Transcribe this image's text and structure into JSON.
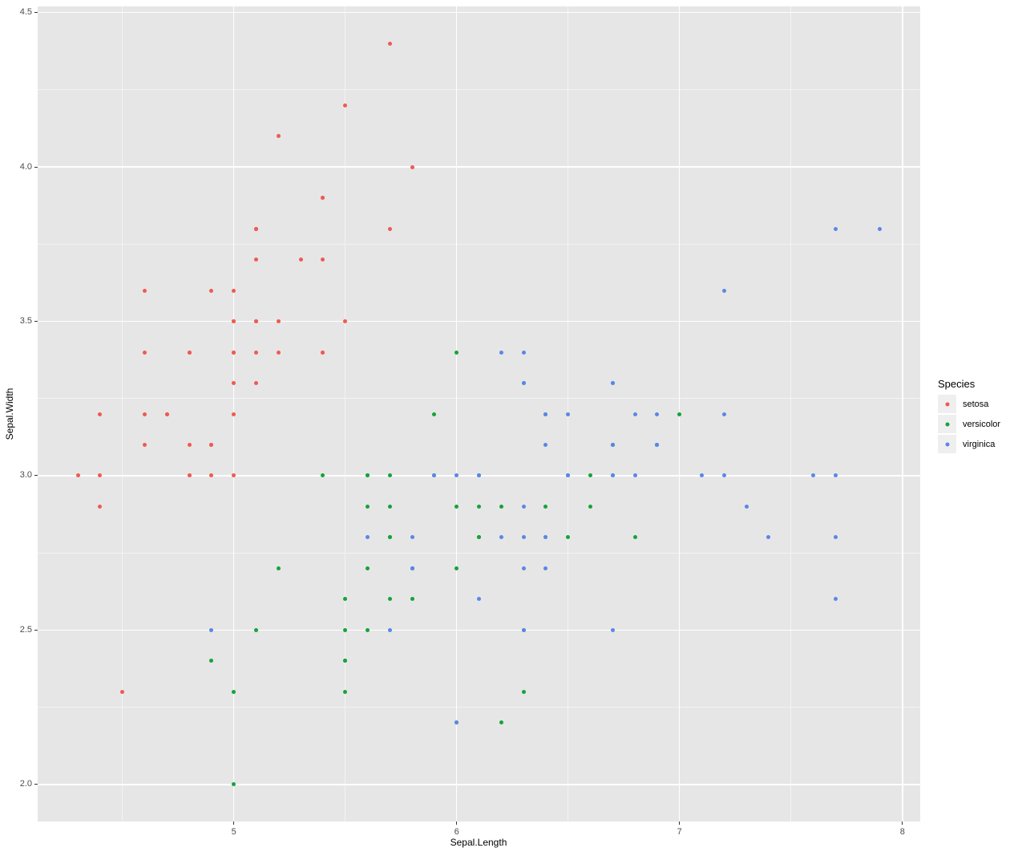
{
  "chart_data": {
    "type": "scatter",
    "title": "",
    "xlabel": "Sepal.Length",
    "ylabel": "Sepal.Width",
    "xlim": [
      4.12,
      8.08
    ],
    "ylim": [
      1.88,
      4.52
    ],
    "x_ticks": [
      5,
      6,
      7,
      8
    ],
    "x_tick_labels": [
      "5",
      "6",
      "7",
      "8"
    ],
    "y_ticks": [
      2.0,
      2.5,
      3.0,
      3.5,
      4.0,
      4.5
    ],
    "y_tick_labels": [
      "2.0",
      "2.5",
      "3.0",
      "3.5",
      "4.0",
      "4.5"
    ],
    "x_minor_ticks": [
      4.5,
      5.5,
      6.5,
      7.5
    ],
    "y_minor_ticks": [
      2.25,
      2.75,
      3.25,
      3.75,
      4.25
    ],
    "grid": true,
    "legend_position": "right",
    "legend_title": "Species",
    "series": [
      {
        "name": "setosa",
        "color": "#EE5A52",
        "points": [
          [
            5.1,
            3.5
          ],
          [
            4.9,
            3.0
          ],
          [
            4.7,
            3.2
          ],
          [
            4.6,
            3.1
          ],
          [
            5.0,
            3.6
          ],
          [
            5.4,
            3.9
          ],
          [
            4.6,
            3.4
          ],
          [
            5.0,
            3.4
          ],
          [
            4.4,
            2.9
          ],
          [
            4.9,
            3.1
          ],
          [
            5.4,
            3.7
          ],
          [
            4.8,
            3.4
          ],
          [
            4.8,
            3.0
          ],
          [
            4.3,
            3.0
          ],
          [
            5.8,
            4.0
          ],
          [
            5.7,
            4.4
          ],
          [
            5.4,
            3.9
          ],
          [
            5.1,
            3.5
          ],
          [
            5.7,
            3.8
          ],
          [
            5.1,
            3.8
          ],
          [
            5.4,
            3.4
          ],
          [
            5.1,
            3.7
          ],
          [
            4.6,
            3.6
          ],
          [
            5.1,
            3.3
          ],
          [
            4.8,
            3.4
          ],
          [
            5.0,
            3.0
          ],
          [
            5.0,
            3.4
          ],
          [
            5.2,
            3.5
          ],
          [
            5.2,
            3.4
          ],
          [
            4.7,
            3.2
          ],
          [
            4.8,
            3.1
          ],
          [
            5.4,
            3.4
          ],
          [
            5.2,
            4.1
          ],
          [
            5.5,
            4.2
          ],
          [
            4.9,
            3.1
          ],
          [
            5.0,
            3.2
          ],
          [
            5.5,
            3.5
          ],
          [
            4.9,
            3.6
          ],
          [
            4.4,
            3.0
          ],
          [
            5.1,
            3.4
          ],
          [
            5.0,
            3.5
          ],
          [
            4.5,
            2.3
          ],
          [
            4.4,
            3.2
          ],
          [
            5.0,
            3.5
          ],
          [
            5.1,
            3.8
          ],
          [
            4.8,
            3.0
          ],
          [
            5.1,
            3.8
          ],
          [
            4.6,
            3.2
          ],
          [
            5.3,
            3.7
          ],
          [
            5.0,
            3.3
          ]
        ]
      },
      {
        "name": "versicolor",
        "color": "#14A33B",
        "points": [
          [
            7.0,
            3.2
          ],
          [
            6.4,
            3.2
          ],
          [
            6.9,
            3.1
          ],
          [
            5.5,
            2.3
          ],
          [
            6.5,
            2.8
          ],
          [
            5.7,
            2.8
          ],
          [
            6.3,
            3.3
          ],
          [
            4.9,
            2.4
          ],
          [
            6.6,
            2.9
          ],
          [
            5.2,
            2.7
          ],
          [
            5.0,
            2.0
          ],
          [
            5.9,
            3.0
          ],
          [
            6.0,
            2.2
          ],
          [
            6.1,
            2.9
          ],
          [
            5.6,
            2.9
          ],
          [
            6.7,
            3.1
          ],
          [
            5.6,
            3.0
          ],
          [
            5.8,
            2.7
          ],
          [
            6.2,
            2.2
          ],
          [
            5.6,
            2.5
          ],
          [
            5.9,
            3.2
          ],
          [
            6.1,
            2.8
          ],
          [
            6.3,
            2.5
          ],
          [
            6.1,
            2.8
          ],
          [
            6.4,
            2.9
          ],
          [
            6.6,
            3.0
          ],
          [
            6.8,
            2.8
          ],
          [
            6.7,
            3.0
          ],
          [
            6.0,
            2.9
          ],
          [
            5.7,
            2.6
          ],
          [
            5.5,
            2.4
          ],
          [
            5.5,
            2.4
          ],
          [
            5.8,
            2.7
          ],
          [
            6.0,
            2.7
          ],
          [
            5.4,
            3.0
          ],
          [
            6.0,
            3.4
          ],
          [
            6.7,
            3.1
          ],
          [
            6.3,
            2.3
          ],
          [
            5.6,
            3.0
          ],
          [
            5.5,
            2.5
          ],
          [
            5.5,
            2.6
          ],
          [
            6.1,
            3.0
          ],
          [
            5.8,
            2.6
          ],
          [
            5.0,
            2.3
          ],
          [
            5.6,
            2.7
          ],
          [
            5.7,
            3.0
          ],
          [
            5.7,
            2.9
          ],
          [
            6.2,
            2.9
          ],
          [
            5.1,
            2.5
          ],
          [
            5.7,
            2.8
          ]
        ]
      },
      {
        "name": "virginica",
        "color": "#5B86E8",
        "points": [
          [
            6.3,
            3.3
          ],
          [
            5.8,
            2.7
          ],
          [
            7.1,
            3.0
          ],
          [
            6.3,
            2.9
          ],
          [
            6.5,
            3.0
          ],
          [
            7.6,
            3.0
          ],
          [
            4.9,
            2.5
          ],
          [
            7.3,
            2.9
          ],
          [
            6.7,
            2.5
          ],
          [
            7.2,
            3.6
          ],
          [
            6.5,
            3.2
          ],
          [
            6.4,
            2.7
          ],
          [
            6.8,
            3.0
          ],
          [
            5.7,
            2.5
          ],
          [
            5.8,
            2.8
          ],
          [
            6.4,
            3.2
          ],
          [
            6.5,
            3.0
          ],
          [
            7.7,
            3.8
          ],
          [
            7.7,
            2.6
          ],
          [
            6.0,
            2.2
          ],
          [
            6.9,
            3.2
          ],
          [
            5.6,
            2.8
          ],
          [
            7.7,
            2.8
          ],
          [
            6.3,
            2.7
          ],
          [
            6.7,
            3.3
          ],
          [
            7.2,
            3.2
          ],
          [
            6.2,
            2.8
          ],
          [
            6.1,
            3.0
          ],
          [
            6.4,
            2.8
          ],
          [
            7.2,
            3.0
          ],
          [
            7.4,
            2.8
          ],
          [
            7.9,
            3.8
          ],
          [
            6.4,
            2.8
          ],
          [
            6.3,
            2.8
          ],
          [
            6.1,
            2.6
          ],
          [
            7.7,
            3.0
          ],
          [
            6.3,
            3.4
          ],
          [
            6.4,
            3.1
          ],
          [
            6.0,
            3.0
          ],
          [
            6.9,
            3.1
          ],
          [
            6.7,
            3.1
          ],
          [
            6.9,
            3.1
          ],
          [
            5.8,
            2.7
          ],
          [
            6.8,
            3.2
          ],
          [
            6.7,
            3.3
          ],
          [
            6.7,
            3.0
          ],
          [
            6.3,
            2.5
          ],
          [
            6.5,
            3.0
          ],
          [
            6.2,
            3.4
          ],
          [
            5.9,
            3.0
          ]
        ]
      }
    ]
  },
  "colors": {
    "background": "#FFFFFF",
    "panel_background": "#E6E6E6",
    "grid_major": "#FFFFFF",
    "grid_minor": "#F3F3F3",
    "axis_text": "#4D4D4D",
    "axis_title": "#000000",
    "tick_mark": "#333333",
    "legend_key_background": "#EFEFEF"
  }
}
